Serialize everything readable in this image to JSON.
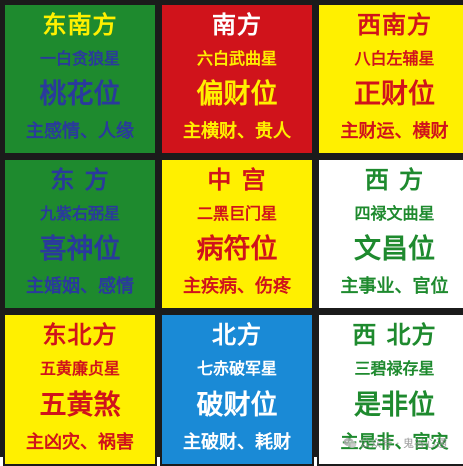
{
  "cells": [
    {
      "direction": "东南方",
      "star": "一白贪狼星",
      "position": "桃花位",
      "meaning": "主感情、人缘",
      "bg": "#1e8a2e",
      "direction_color": "#fff000",
      "star_color": "#2a3a9c",
      "position_color": "#2a3a9c",
      "meaning_color": "#2a3a9c"
    },
    {
      "direction": "南方",
      "star": "六白武曲星",
      "position": "偏财位",
      "meaning": "主横财、贵人",
      "bg": "#d0131b",
      "direction_color": "#ffffff",
      "star_color": "#fff000",
      "position_color": "#fff000",
      "meaning_color": "#fff000"
    },
    {
      "direction": "西南方",
      "star": "八白左辅星",
      "position": "正财位",
      "meaning": "主财运、横财",
      "bg": "#fff000",
      "direction_color": "#d0131b",
      "star_color": "#d0131b",
      "position_color": "#d0131b",
      "meaning_color": "#d0131b"
    },
    {
      "direction": "东 方",
      "star": "九紫右弼星",
      "position": "喜神位",
      "meaning": "主婚姻、感情",
      "bg": "#1e8a2e",
      "direction_color": "#2a3a9c",
      "star_color": "#2a3a9c",
      "position_color": "#2a3a9c",
      "meaning_color": "#2a3a9c"
    },
    {
      "direction": "中 宫",
      "star": "二黑巨门星",
      "position": "病符位",
      "meaning": "主疾病、伤疼",
      "bg": "#fff000",
      "direction_color": "#d0131b",
      "star_color": "#d0131b",
      "position_color": "#d0131b",
      "meaning_color": "#d0131b"
    },
    {
      "direction": "西 方",
      "star": "四禄文曲星",
      "position": "文昌位",
      "meaning": "主事业、官位",
      "bg": "#ffffff",
      "direction_color": "#1e8a2e",
      "star_color": "#1e8a2e",
      "position_color": "#1e8a2e",
      "meaning_color": "#1e8a2e"
    },
    {
      "direction": "东北方",
      "star": "五黄廉贞星",
      "position": "五黄煞",
      "meaning": "主凶灾、祸害",
      "bg": "#fff000",
      "direction_color": "#d0131b",
      "star_color": "#d0131b",
      "position_color": "#d0131b",
      "meaning_color": "#d0131b"
    },
    {
      "direction": "北方",
      "star": "七赤破军星",
      "position": "破财位",
      "meaning": "主破财、耗财",
      "bg": "#1a8ad6",
      "direction_color": "#ffffff",
      "star_color": "#ffffff",
      "position_color": "#ffffff",
      "meaning_color": "#ffffff"
    },
    {
      "direction": "西 北方",
      "star": "三碧禄存星",
      "position": "是非位",
      "meaning": "主是非、官灾",
      "bg": "#ffffff",
      "direction_color": "#1e8a2e",
      "star_color": "#1e8a2e",
      "position_color": "#1e8a2e",
      "meaning_color": "#1e8a2e"
    }
  ],
  "watermark": {
    "text": "公众号 · 鬼谷心通",
    "icon": "wechat-icon"
  }
}
